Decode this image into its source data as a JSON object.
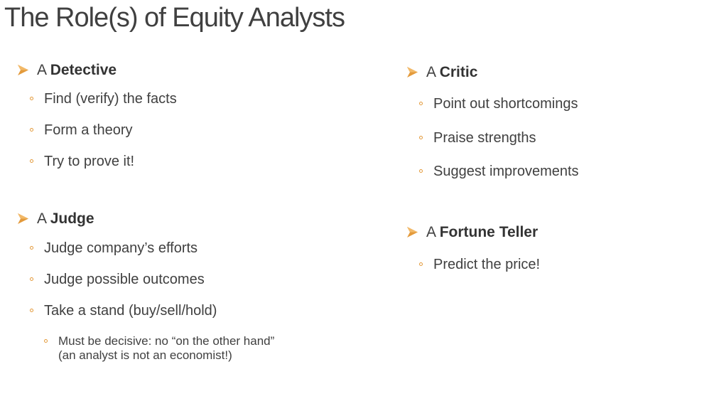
{
  "title": "The Role(s) of Equity Analysts",
  "accent_color": "#E39A3B",
  "left": {
    "detective": {
      "prefix": "A",
      "name": "Detective",
      "items": [
        "Find (verify) the facts",
        "Form a theory",
        "Try to prove it!"
      ]
    },
    "judge": {
      "prefix": "A",
      "name": "Judge",
      "items": [
        "Judge company’s efforts",
        "Judge possible outcomes",
        "Take a stand (buy/sell/hold)"
      ],
      "sub_item": {
        "line1": "Must be decisive:  no “on the other hand”",
        "line2": "(an analyst is not an economist!)"
      }
    }
  },
  "right": {
    "critic": {
      "prefix": "A",
      "name": "Critic",
      "items": [
        "Point out shortcomings",
        "Praise strengths",
        "Suggest improvements"
      ]
    },
    "fortune_teller": {
      "prefix": "A",
      "name": "Fortune Teller",
      "items": [
        "Predict the price!"
      ]
    }
  }
}
